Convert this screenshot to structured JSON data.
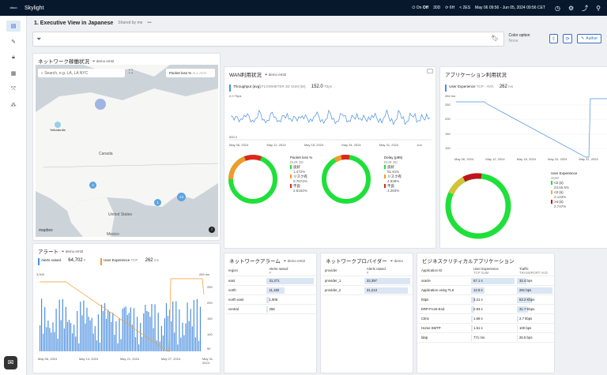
{
  "topbar": {
    "logo": "cisco",
    "brand": "Skylight",
    "live_label": "On",
    "live_state": "Off",
    "range_30d": "30D",
    "range_6h": "6H",
    "prev_label": "< 2ES",
    "date_range": "May 06 09:56 - Jun 05, 2024 09:56 CET"
  },
  "page": {
    "title": "1. Executive View in Japanese",
    "shared": "Shared by me",
    "more": "•••",
    "color_option_label": "Color option",
    "color_option_value": "None",
    "author_label": "Author"
  },
  "network_status": {
    "title": "ネットワーク稼働状況",
    "filter": "demo emt2",
    "search_placeholder": "Search, e.g. LA, LA NYC",
    "packet_loss_label": "Packet loss %",
    "all_label": "ALL",
    "avg_label": "AVG",
    "map_labels": {
      "canada": "Canada",
      "us": "United States",
      "mexico": "Mexico",
      "yellowknife": "Yellowknife"
    },
    "clusters": [
      "3",
      "1",
      "13"
    ],
    "attribution": "mapbox"
  },
  "wan": {
    "title": "WAN利用状況",
    "filter": "demo emt2",
    "series_name": "Throughput (avg)",
    "series_sub": "FLOWMETER 3D SUM (BI)",
    "series_value": "152.0",
    "series_unit": "Tbps",
    "y_top": "2.0 Tbps",
    "y_bottom": "500.2",
    "x_labels": [
      "May 06, 2024",
      "May 12, 2024",
      "May 18, 2024",
      "May 24, 2024",
      "May 31, 2024",
      "Jun"
    ],
    "packet_loss": {
      "title": "Packet loss %",
      "sub": "DUR 3D",
      "items": [
        {
          "label": "良好",
          "value": "1,472%",
          "color": "#1fe03a"
        },
        {
          "label": "リスク有",
          "value": "0.7674%",
          "color": "#f39a2b"
        },
        {
          "label": "不良",
          "value": "2.8164%",
          "color": "#e0251f"
        }
      ]
    },
    "delay": {
      "title": "Delay (p95)",
      "sub": "DUR 3D",
      "items": [
        {
          "label": "良好",
          "value": "91.91%",
          "color": "#1fe03a"
        },
        {
          "label": "リスク有",
          "value": "4.839%",
          "color": "#f39a2b"
        },
        {
          "label": "不良",
          "value": "3.283%",
          "color": "#e0251f"
        }
      ]
    }
  },
  "app_usage": {
    "title": "アプリケーション利用状況",
    "series_name": "User Experience",
    "series_sub": "TCP · AVG",
    "series_value": "262",
    "series_unit": "ms",
    "y_labels": [
      "284 ms",
      "250",
      "200",
      "150",
      "100"
    ],
    "x_labels": [
      "May 06, 2024",
      "May 12, 2024",
      "May 18, 2024",
      "May 24, 2024",
      "May 31, 2024",
      "Jun"
    ],
    "donut_title": "User Experience",
    "donut_sub": "SUM",
    "items": [
      {
        "label": "<2 (s)",
        "value": "23.65.5%",
        "color": "#1fe03a"
      },
      {
        "label": "<2 (s)",
        "value": "2.143%",
        "color": "#d6c23a"
      },
      {
        "label": ">4 (s)",
        "value": "2.747%",
        "color": "#c0141c"
      }
    ]
  },
  "alerts": {
    "title": "アラート",
    "filter": "demo emt2",
    "series1_name": "Alerts raised",
    "series1_value": "64,702",
    "series1_unit": "#",
    "series2_name": "User Experience",
    "series2_sub": "TCP",
    "series2_value": "262",
    "series2_unit": "ms",
    "series2_sub2": "AVG",
    "y_left_top": "3,000",
    "y_right_top": "284 ms",
    "y_right": [
      "250",
      "200",
      "150",
      "100",
      "50"
    ],
    "x_labels": [
      "May 06, 2024",
      "May 14, 2024",
      "May 21, 2024",
      "May 27, 2024",
      "May 31, 2024"
    ]
  },
  "network_alarm": {
    "title": "ネットワークアラーム",
    "filter": "demo emt2",
    "col1": "region",
    "col2": "Alerts raised",
    "col2_sub": "#",
    "rows": [
      {
        "name": "east",
        "value": "31,371",
        "pct": 0.95
      },
      {
        "name": "north",
        "value": "11,182",
        "pct": 0.36
      },
      {
        "name": "north east",
        "value": "1,906",
        "pct": 0.06
      },
      {
        "name": "central",
        "value": "258",
        "pct": 0.02
      }
    ]
  },
  "network_provider": {
    "title": "ネットワークプロバイダー",
    "filter": "demo",
    "col1": "provider",
    "col2": "Alerts raised",
    "col2_sub": "#",
    "rows": [
      {
        "name": "provider_1",
        "value": "33,397",
        "pct": 0.95
      },
      {
        "name": "provider_2",
        "value": "31,213",
        "pct": 0.9
      }
    ]
  },
  "business_apps": {
    "title": "ビジネスクリティカルアプリケーション",
    "col1": "Application ID",
    "col2": "User Experience",
    "col2_sub": "TCP SUM",
    "col3": "Traffic",
    "col3_sub": "TRANSPORT AVG",
    "rows": [
      {
        "name": "oracle",
        "ux": "57.1 s",
        "ux_pct": 0.95,
        "traffic": "32.4 bps",
        "tr_pct": 0.25
      },
      {
        "name": "Application using TLS",
        "ux": "12.8 s",
        "ux_pct": 0.3,
        "traffic": "281 bps",
        "tr_pct": 0.95
      },
      {
        "name": "https",
        "ux": "3.21 s",
        "ux_pct": 0.08,
        "traffic": "53.2 Kbps",
        "tr_pct": 0.4
      },
      {
        "name": "ERP-Front-End",
        "ux": "2.93 s",
        "ux_pct": 0.07,
        "traffic": "31.7 Kbps",
        "tr_pct": 0.3
      },
      {
        "name": "Citrix",
        "ux": "1.68 s",
        "ux_pct": 0.04,
        "traffic": "2.7 kbps",
        "tr_pct": 0.05
      },
      {
        "name": "Home SMTP",
        "ux": "1.51 s",
        "ux_pct": 0.04,
        "traffic": "100 bps",
        "tr_pct": 0.02
      },
      {
        "name": "ldap",
        "ux": "771 ms",
        "ux_pct": 0.02,
        "traffic": "26.5 bps",
        "tr_pct": 0.01
      }
    ]
  }
}
